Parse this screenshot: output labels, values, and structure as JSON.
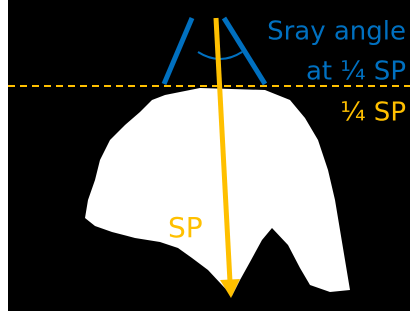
{
  "labels": {
    "spray_angle": "Sray angle",
    "at_quarter_sp": "at ¼ SP",
    "quarter_sp": "¼ SP",
    "sp": "SP"
  }
}
